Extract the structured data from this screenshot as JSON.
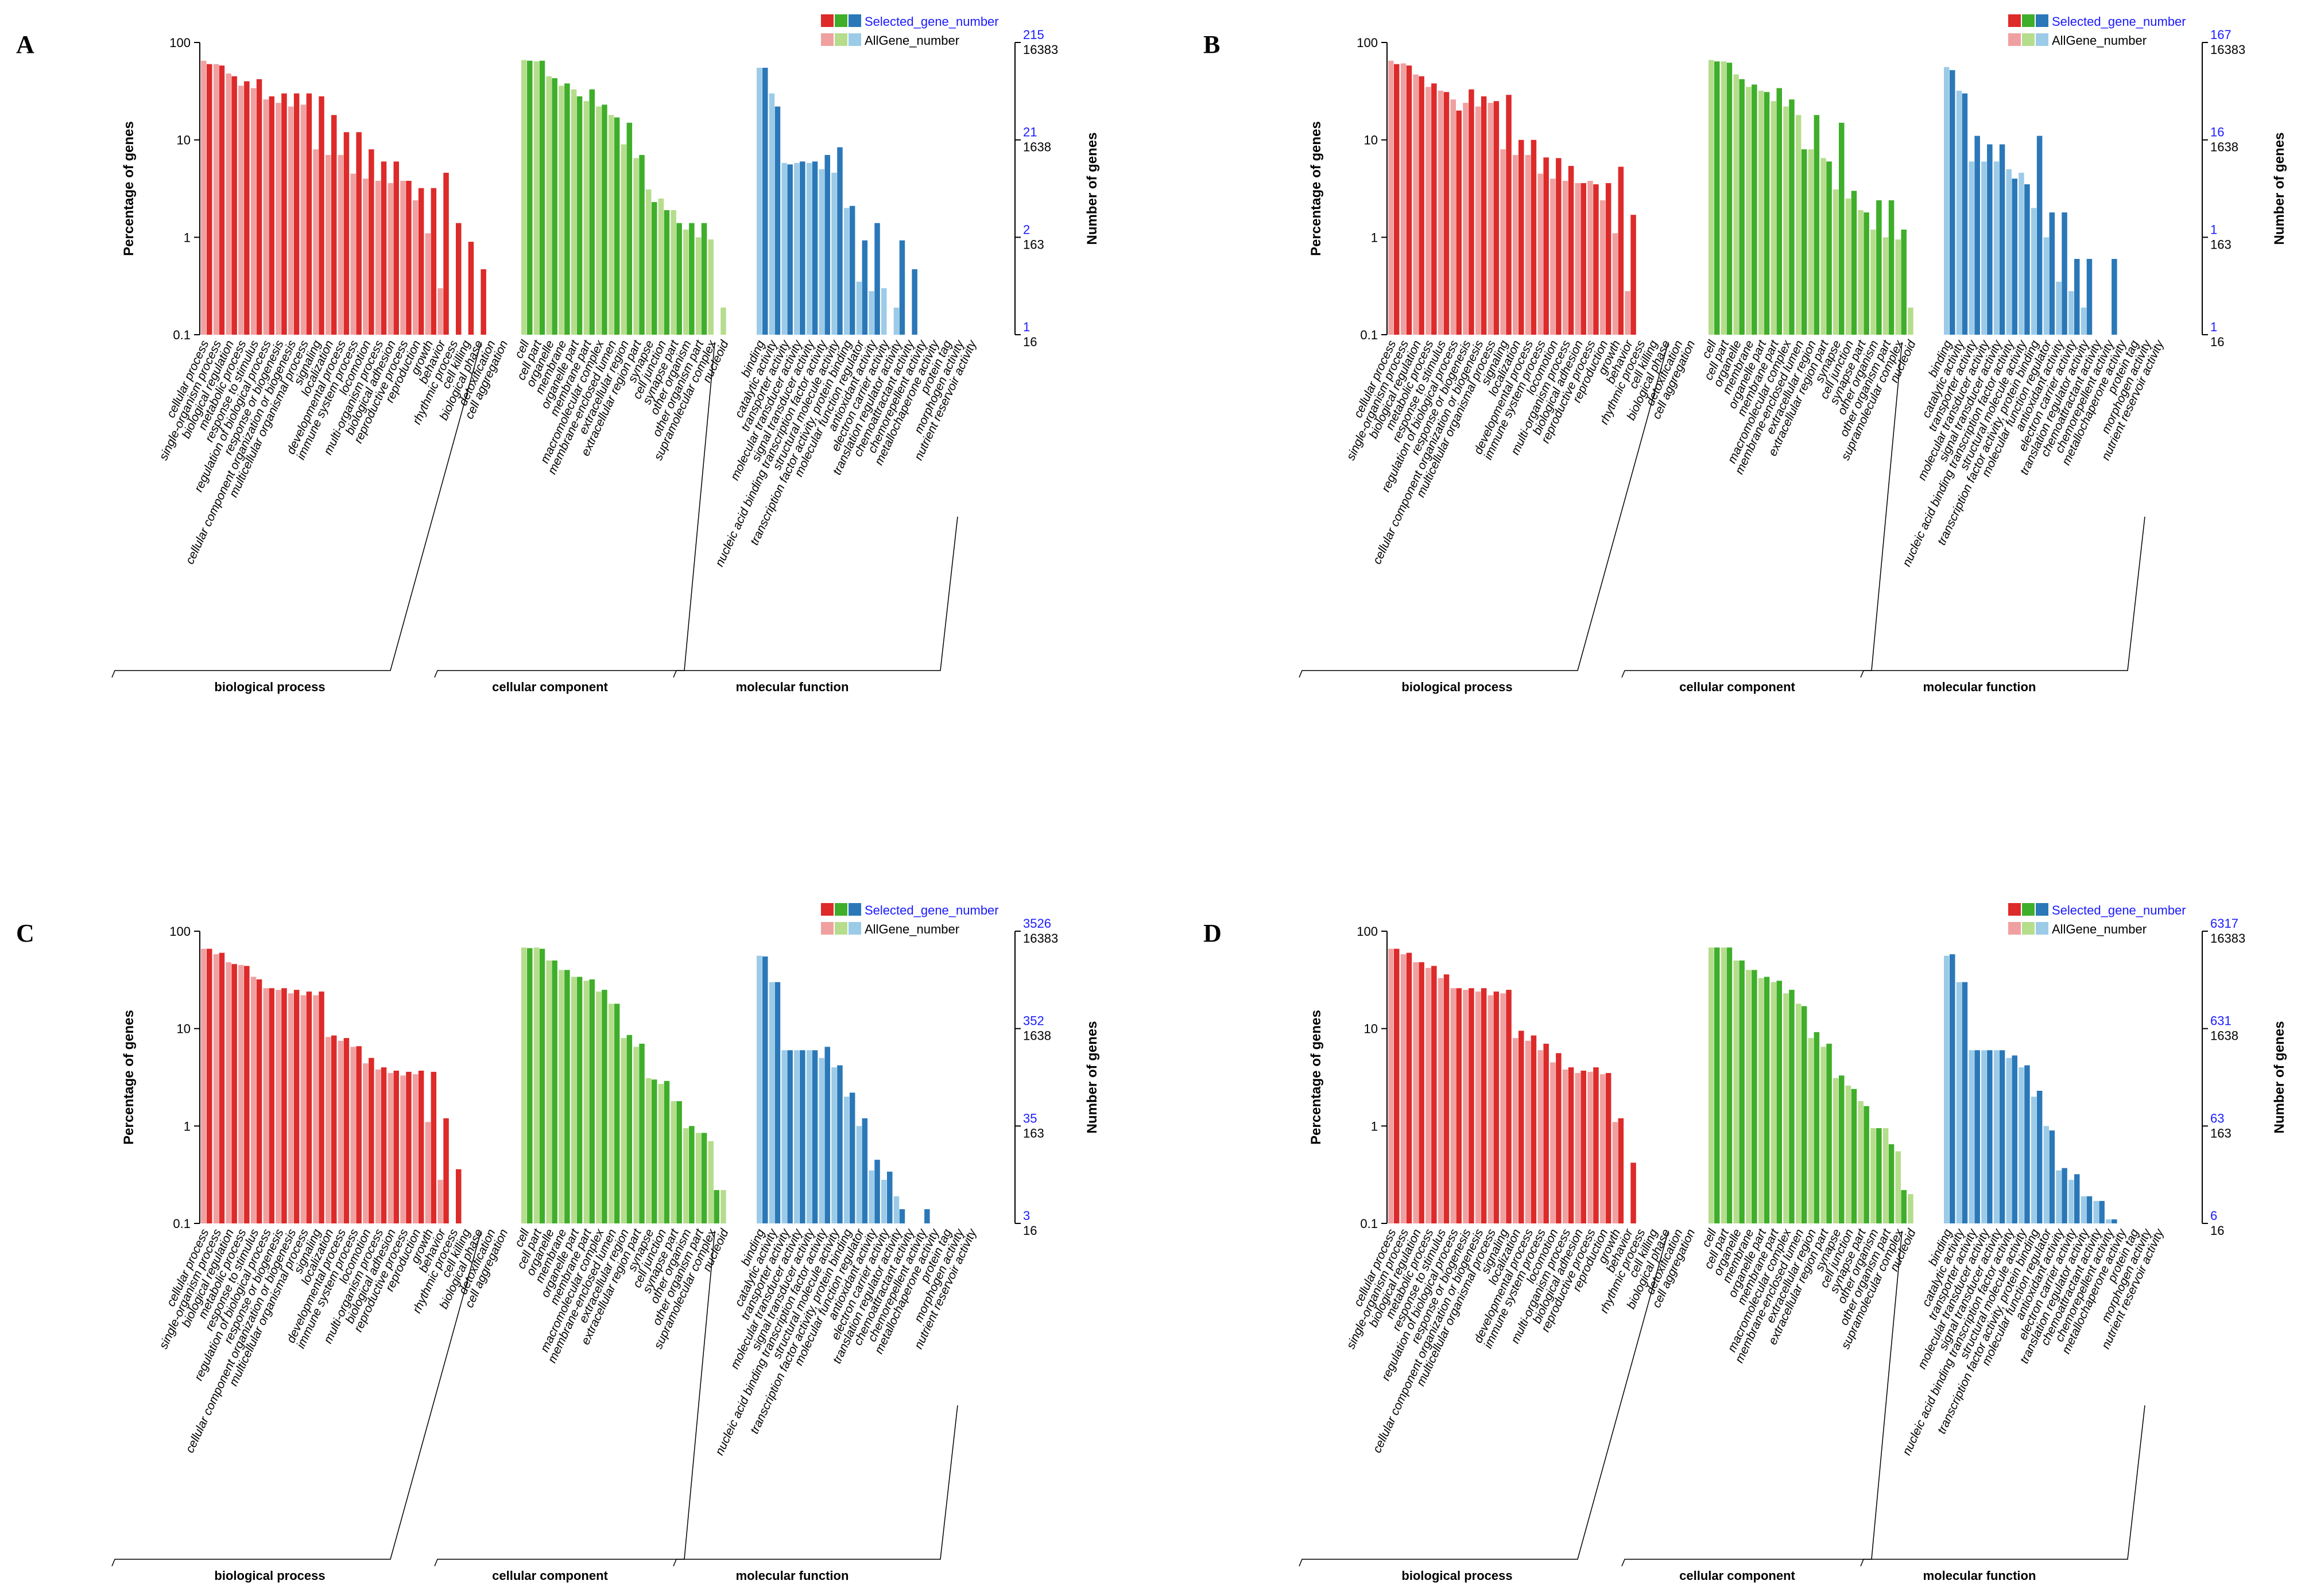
{
  "categories": {
    "biological_process": [
      "cellular process",
      "single-organism process",
      "biological regulation",
      "metabolic process",
      "response to stimulus",
      "regulation of biological process",
      "response or biogenesis",
      "cellular component organization or biogenesis",
      "multicellular organismal process",
      "signaling",
      "localization",
      "developmental process",
      "immune system process",
      "locomotion",
      "multi-organism process",
      "biological adhesion",
      "reproductive process",
      "reproduction",
      "growth",
      "behavior",
      "rhythmic process",
      "cell killing",
      "biological phase",
      "detoxification",
      "cell aggregation"
    ],
    "cellular_component": [
      "cell",
      "cell part",
      "organelle",
      "membrane",
      "organelle part",
      "membrane part",
      "macromolecular complex",
      "membrane-enclosed lumen",
      "extracellular region",
      "extracellular region part",
      "synapse",
      "cell junction",
      "synapse part",
      "other organism",
      "other organism part",
      "supramolecular complex",
      "nucleoid"
    ],
    "molecular_function": [
      "binding",
      "catalytic activity",
      "transporter activity",
      "molecular transducer activity",
      "signal transducer activity",
      "nucleic acid binding transcription factor activity",
      "structural molecule activity",
      "transcription factor activity, protein binding",
      "molecular function regulator",
      "antioxidant activity",
      "electron carrier activity",
      "translation regulator activity",
      "chemoattractant activity",
      "chemorepellent activity",
      "metallochaperone activity",
      "protein tag",
      "morphogen activity",
      "nutrient reservoir activity"
    ]
  },
  "chart_data": [
    {
      "panel": "A",
      "type": "bar",
      "ylabel": "Percentage of genes",
      "y2label": "Number of genes",
      "yscale": "log",
      "ylim": [
        0.1,
        100
      ],
      "yticks": [
        "100",
        "10",
        "1",
        "0.1"
      ],
      "right_ticks_selected": [
        "215",
        "21",
        "2",
        "1"
      ],
      "right_ticks_all": [
        "16383",
        "1638",
        "163",
        "16"
      ],
      "legend": [
        "Selected_gene_number",
        "AllGene_number"
      ],
      "groups": [
        "biological process",
        "cellular component",
        "molecular function"
      ],
      "series": [
        {
          "name": "Selected_gene_number",
          "values": [
            [
              60,
              58,
              45,
              40,
              42,
              28,
              30,
              30,
              30,
              28,
              18,
              12,
              12,
              8,
              6,
              6,
              3.8,
              3.2,
              3.2,
              4.6,
              1.4,
              0.9,
              0.47,
              null,
              null
            ],
            [
              65,
              65,
              43,
              38,
              28,
              33,
              23,
              17,
              15,
              7,
              2.3,
              1.9,
              1.4,
              1.4,
              1.4,
              null,
              null
            ],
            [
              55,
              22,
              5.6,
              6,
              6,
              7,
              8.4,
              2.1,
              0.93,
              1.4,
              null,
              0.93,
              0.47,
              null,
              null,
              null,
              null,
              null
            ]
          ]
        },
        {
          "name": "AllGene_number",
          "values": [
            [
              65,
              60,
              48,
              36,
              34,
              26,
              24,
              22,
              23,
              8,
              7,
              7,
              4.5,
              4,
              3.8,
              3.6,
              3.8,
              2.4,
              1.1,
              0.3,
              null,
              null,
              null,
              null,
              null
            ],
            [
              66,
              64,
              45,
              36,
              33,
              25,
              22,
              18,
              9,
              6.5,
              3.1,
              2.5,
              1.9,
              1.2,
              1,
              0.95,
              0.19
            ],
            [
              55,
              30,
              5.8,
              5.8,
              5.8,
              5,
              4.6,
              2,
              0.35,
              0.28,
              0.3,
              0.19,
              null,
              null,
              null,
              null,
              null,
              null
            ]
          ]
        }
      ]
    },
    {
      "panel": "B",
      "type": "bar",
      "ylabel": "Percentage of genes",
      "y2label": "Number of genes",
      "yscale": "log",
      "ylim": [
        0.1,
        100
      ],
      "yticks": [
        "100",
        "10",
        "1",
        "0.1"
      ],
      "right_ticks_selected": [
        "167",
        "16",
        "1",
        "1"
      ],
      "right_ticks_all": [
        "16383",
        "1638",
        "163",
        "16"
      ],
      "legend": [
        "Selected_gene_number",
        "AllGene_number"
      ],
      "groups": [
        "biological process",
        "cellular component",
        "molecular function"
      ],
      "series": [
        {
          "name": "Selected_gene_number",
          "values": [
            [
              60,
              58,
              45,
              38,
              31,
              20,
              33,
              28,
              25,
              29,
              10,
              10,
              6.6,
              6.5,
              5.4,
              3.6,
              3.5,
              3.6,
              5.3,
              1.7,
              null,
              null,
              null,
              null,
              null
            ],
            [
              64,
              62,
              42,
              37,
              31,
              34,
              26,
              8,
              18,
              6,
              15,
              3,
              1.8,
              2.4,
              2.4,
              1.2,
              null
            ],
            [
              52,
              30,
              11,
              9,
              9,
              4,
              3.5,
              11,
              1.8,
              1.8,
              0.6,
              0.6,
              null,
              0.6,
              null,
              null,
              null,
              null
            ]
          ]
        },
        {
          "name": "AllGene_number",
          "values": [
            [
              65,
              61,
              47,
              35,
              32,
              26,
              24,
              22,
              24,
              8,
              7,
              7,
              4.5,
              4,
              3.8,
              3.6,
              3.8,
              2.4,
              1.1,
              0.28,
              null,
              null,
              null,
              null,
              null
            ],
            [
              66,
              64,
              47,
              35,
              32,
              25,
              22,
              18,
              8,
              6.5,
              3.1,
              2.5,
              1.9,
              1.2,
              1,
              0.95,
              0.19
            ],
            [
              56,
              32,
              6,
              6,
              6,
              5,
              4.6,
              2,
              1,
              0.35,
              0.28,
              0.19,
              null,
              null,
              null,
              null,
              null,
              null
            ]
          ]
        }
      ]
    },
    {
      "panel": "C",
      "type": "bar",
      "ylabel": "Percentage of genes",
      "y2label": "Number of genes",
      "yscale": "log",
      "ylim": [
        0.1,
        100
      ],
      "yticks": [
        "100",
        "10",
        "1",
        "0.1"
      ],
      "right_ticks_selected": [
        "3526",
        "352",
        "35",
        "3"
      ],
      "right_ticks_all": [
        "16383",
        "1638",
        "163",
        "16"
      ],
      "legend": [
        "Selected_gene_number",
        "AllGene_number"
      ],
      "groups": [
        "biological process",
        "cellular component",
        "molecular function"
      ],
      "series": [
        {
          "name": "Selected_gene_number",
          "values": [
            [
              66,
              60,
              46,
              44,
              32,
              26,
              26,
              25,
              24,
              24,
              8.5,
              8,
              6.6,
              5,
              4,
              3.7,
              3.6,
              3.7,
              3.6,
              1.2,
              0.36,
              null,
              null,
              null,
              null
            ],
            [
              67,
              66,
              50,
              40,
              34,
              32,
              25,
              18,
              8.6,
              7,
              3,
              2.9,
              1.8,
              1,
              0.85,
              0.22,
              null
            ],
            [
              55,
              30,
              6,
              6,
              6,
              6.5,
              4.2,
              2.2,
              1.2,
              0.45,
              0.34,
              0.14,
              null,
              0.14,
              null,
              null,
              null,
              null
            ]
          ]
        },
        {
          "name": "AllGene_number",
          "values": [
            [
              66,
              58,
              48,
              45,
              34,
              26,
              25,
              23,
              22,
              22,
              8.2,
              7.5,
              6.5,
              4.4,
              3.8,
              3.5,
              3.3,
              3.4,
              1.1,
              0.28,
              null,
              null,
              null,
              null,
              null
            ],
            [
              68,
              68,
              50,
              40,
              34,
              31,
              24,
              18,
              8,
              6.5,
              3.1,
              2.7,
              1.8,
              0.95,
              0.85,
              0.7,
              0.22
            ],
            [
              56,
              30,
              6,
              6,
              6,
              5,
              4,
              2,
              1,
              0.35,
              0.28,
              0.19,
              null,
              null,
              null,
              null,
              null,
              null
            ]
          ]
        }
      ]
    },
    {
      "panel": "D",
      "type": "bar",
      "ylabel": "Percentage of genes",
      "y2label": "Number of genes",
      "yscale": "log",
      "ylim": [
        0.1,
        100
      ],
      "yticks": [
        "100",
        "10",
        "1",
        "0.1"
      ],
      "right_ticks_selected": [
        "6317",
        "631",
        "63",
        "6"
      ],
      "right_ticks_all": [
        "16383",
        "1638",
        "163",
        "16"
      ],
      "legend": [
        "Selected_gene_number",
        "AllGene_number"
      ],
      "groups": [
        "biological process",
        "cellular component",
        "molecular function"
      ],
      "series": [
        {
          "name": "Selected_gene_number",
          "values": [
            [
              66,
              60,
              48,
              44,
              36,
              26,
              26,
              26,
              24,
              25,
              9.5,
              8.5,
              7,
              5.6,
              4,
              3.7,
              4,
              3.5,
              1.2,
              0.42,
              null,
              null,
              null,
              null,
              null
            ],
            [
              68,
              68,
              50,
              40,
              34,
              31,
              25,
              17,
              9.2,
              7,
              3.3,
              2.4,
              1.6,
              0.95,
              0.65,
              0.22,
              null
            ],
            [
              58,
              30,
              6,
              6,
              6,
              5.3,
              4.2,
              2.3,
              0.9,
              0.37,
              0.32,
              0.19,
              0.17,
              0.11,
              null,
              null,
              null,
              null
            ]
          ]
        },
        {
          "name": "AllGene_number",
          "values": [
            [
              66,
              58,
              48,
              42,
              33,
              26,
              25,
              24,
              22,
              23,
              8,
              7.5,
              6,
              4.5,
              3.8,
              3.5,
              3.6,
              3.4,
              1.1,
              null,
              null,
              null,
              null,
              null,
              null
            ],
            [
              68,
              68,
              50,
              40,
              33,
              30,
              23,
              18,
              8,
              6.5,
              3.1,
              2.6,
              1.8,
              0.95,
              0.95,
              0.55,
              0.2
            ],
            [
              56,
              30,
              6,
              6,
              6,
              5,
              4,
              2,
              1,
              0.35,
              0.28,
              0.19,
              0.17,
              0.11,
              null,
              null,
              null,
              null
            ]
          ]
        }
      ]
    }
  ],
  "colors": {
    "bp_selected": "#dd2a2a",
    "bp_all": "#f0a0a0",
    "cc_selected": "#3fae2a",
    "cc_all": "#b5dd8c",
    "mf_selected": "#2a78b8",
    "mf_all": "#9ccbe8",
    "selected_text": "#1a1aff"
  }
}
